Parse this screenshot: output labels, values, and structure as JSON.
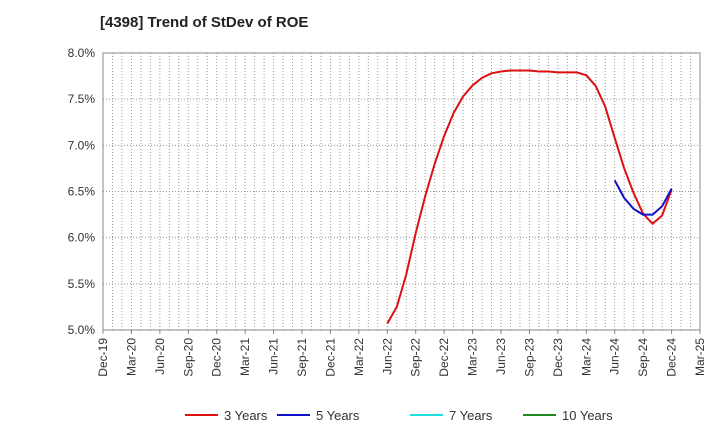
{
  "chart_data": {
    "type": "line",
    "title": "[4398]  Trend of StDev of ROE",
    "xlabel": "",
    "ylabel": "",
    "ylim": [
      5.0,
      8.0
    ],
    "yticks": [
      5.0,
      5.5,
      6.0,
      6.5,
      7.0,
      7.5,
      8.0
    ],
    "ytick_labels": [
      "5.0%",
      "5.5%",
      "6.0%",
      "6.5%",
      "7.0%",
      "7.5%",
      "8.0%"
    ],
    "xtick_labels": [
      "Dec-19",
      "Mar-20",
      "Jun-20",
      "Sep-20",
      "Dec-20",
      "Mar-21",
      "Jun-21",
      "Sep-21",
      "Dec-21",
      "Mar-22",
      "Jun-22",
      "Sep-22",
      "Dec-22",
      "Mar-23",
      "Jun-23",
      "Sep-23",
      "Dec-23",
      "Mar-24",
      "Jun-24",
      "Sep-24",
      "Dec-24",
      "Mar-25"
    ],
    "x_axis_unit": "month",
    "grid": true,
    "legend_position": "bottom",
    "series": [
      {
        "name": "3 Years",
        "color": "#dd1111",
        "points": [
          [
            "Jun-22",
            5.07
          ],
          [
            "Jul-22",
            5.25
          ],
          [
            "Aug-22",
            5.6
          ],
          [
            "Sep-22",
            6.05
          ],
          [
            "Oct-22",
            6.45
          ],
          [
            "Nov-22",
            6.8
          ],
          [
            "Dec-22",
            7.1
          ],
          [
            "Jan-23",
            7.35
          ],
          [
            "Feb-23",
            7.53
          ],
          [
            "Mar-23",
            7.65
          ],
          [
            "Apr-23",
            7.73
          ],
          [
            "May-23",
            7.78
          ],
          [
            "Jun-23",
            7.8
          ],
          [
            "Jul-23",
            7.81
          ],
          [
            "Aug-23",
            7.81
          ],
          [
            "Sep-23",
            7.81
          ],
          [
            "Oct-23",
            7.8
          ],
          [
            "Nov-23",
            7.8
          ],
          [
            "Dec-23",
            7.79
          ],
          [
            "Jan-24",
            7.79
          ],
          [
            "Feb-24",
            7.79
          ],
          [
            "Mar-24",
            7.76
          ],
          [
            "Apr-24",
            7.64
          ],
          [
            "May-24",
            7.42
          ],
          [
            "Jun-24",
            7.08
          ],
          [
            "Jul-24",
            6.75
          ],
          [
            "Aug-24",
            6.48
          ],
          [
            "Sep-24",
            6.26
          ],
          [
            "Oct-24",
            6.15
          ],
          [
            "Nov-24",
            6.24
          ],
          [
            "Dec-24",
            6.52
          ]
        ]
      },
      {
        "name": "5 Years",
        "color": "#1111cc",
        "points": [
          [
            "Jun-24",
            6.62
          ],
          [
            "Jul-24",
            6.43
          ],
          [
            "Aug-24",
            6.31
          ],
          [
            "Sep-24",
            6.25
          ],
          [
            "Oct-24",
            6.25
          ],
          [
            "Nov-24",
            6.34
          ],
          [
            "Dec-24",
            6.53
          ]
        ]
      },
      {
        "name": "7 Years",
        "color": "#22dddd",
        "points": []
      },
      {
        "name": "10 Years",
        "color": "#228822",
        "points": []
      }
    ]
  }
}
